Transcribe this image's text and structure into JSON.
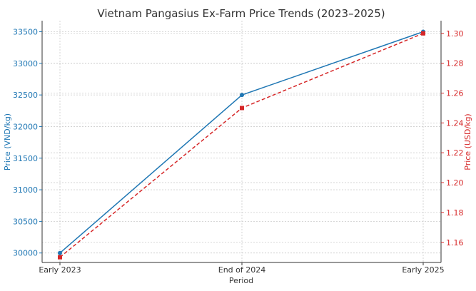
{
  "chart_data": {
    "type": "line",
    "title": "Vietnam Pangasius Ex-Farm Price Trends (2023–2025)",
    "xlabel": "Period",
    "categories": [
      "Early 2023",
      "End of 2024",
      "Early 2025"
    ],
    "left_axis": {
      "label": "Price (VND/kg)",
      "ylim": [
        29850,
        33675
      ],
      "ticks": [
        "30000",
        "30500",
        "31000",
        "31500",
        "32000",
        "32500",
        "33000",
        "33500"
      ],
      "color": "#1f77b4"
    },
    "right_axis": {
      "label": "Price (USD/kg)",
      "ylim": [
        1.1465,
        1.3085
      ],
      "ticks": [
        "1.16",
        "1.18",
        "1.20",
        "1.22",
        "1.24",
        "1.26",
        "1.28",
        "1.30"
      ],
      "color": "#d62728"
    },
    "series": [
      {
        "axis": "left",
        "values": [
          30000,
          32500,
          33500
        ],
        "color": "#1f77b4",
        "style": "solid",
        "marker": "circle"
      },
      {
        "axis": "right",
        "values": [
          1.15,
          1.25,
          1.3
        ],
        "color": "#d62728",
        "style": "dashed",
        "marker": "square"
      }
    ],
    "grid": true
  }
}
